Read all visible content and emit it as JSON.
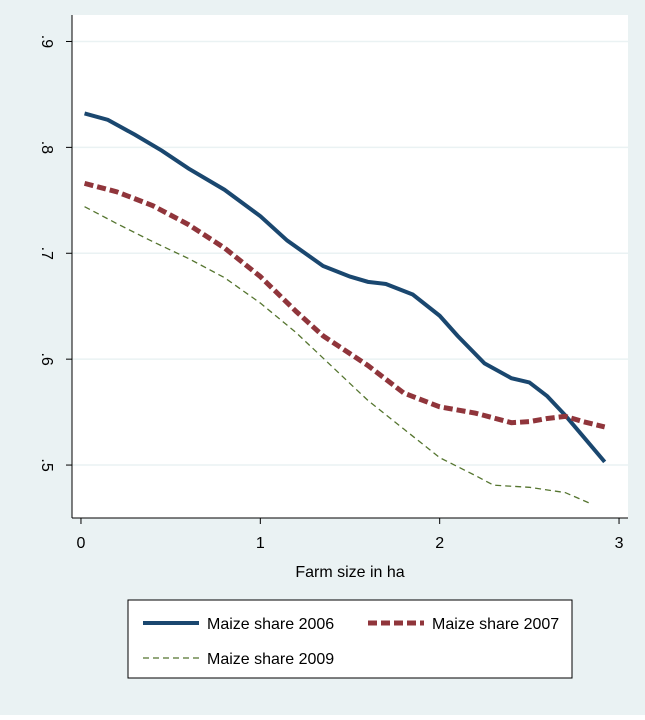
{
  "chart_data": {
    "type": "line",
    "xlabel": "Farm size in ha",
    "xlim": [
      -0.05,
      3.05
    ],
    "xticks": [
      0,
      1,
      2,
      3
    ],
    "ylim": [
      0.45,
      0.925
    ],
    "yticks": [
      {
        "value": 0.5,
        "label": ".5"
      },
      {
        "value": 0.6,
        "label": ".6"
      },
      {
        "value": 0.7,
        "label": ".7"
      },
      {
        "value": 0.8,
        "label": ".8"
      },
      {
        "value": 0.9,
        "label": ".9"
      }
    ],
    "grid": true,
    "series": [
      {
        "name": "Maize share 2006",
        "color": "#1a476f",
        "x": [
          0.02,
          0.15,
          0.3,
          0.45,
          0.6,
          0.8,
          1.0,
          1.15,
          1.35,
          1.5,
          1.6,
          1.7,
          1.85,
          2.0,
          2.1,
          2.25,
          2.4,
          2.5,
          2.6,
          2.7,
          2.8,
          2.92
        ],
        "values": [
          0.832,
          0.826,
          0.812,
          0.797,
          0.78,
          0.76,
          0.735,
          0.712,
          0.688,
          0.678,
          0.673,
          0.671,
          0.661,
          0.641,
          0.622,
          0.596,
          0.582,
          0.578,
          0.565,
          0.547,
          0.527,
          0.503
        ]
      },
      {
        "name": "Maize share 2007",
        "color": "#90353b",
        "x": [
          0.02,
          0.2,
          0.4,
          0.6,
          0.8,
          1.0,
          1.2,
          1.35,
          1.6,
          1.8,
          2.0,
          2.2,
          2.4,
          2.5,
          2.6,
          2.7,
          2.8,
          2.92
        ],
        "values": [
          0.766,
          0.758,
          0.745,
          0.727,
          0.705,
          0.678,
          0.645,
          0.622,
          0.594,
          0.568,
          0.555,
          0.549,
          0.54,
          0.541,
          0.544,
          0.546,
          0.541,
          0.536
        ]
      },
      {
        "name": "Maize share 2009",
        "color": "#55752f",
        "x": [
          0.02,
          0.2,
          0.4,
          0.6,
          0.8,
          1.0,
          1.2,
          1.4,
          1.6,
          1.8,
          2.0,
          2.2,
          2.3,
          2.4,
          2.5,
          2.7,
          2.85
        ],
        "values": [
          0.744,
          0.728,
          0.711,
          0.695,
          0.677,
          0.653,
          0.625,
          0.593,
          0.561,
          0.534,
          0.507,
          0.49,
          0.481,
          0.48,
          0.479,
          0.474,
          0.463
        ]
      }
    ]
  }
}
